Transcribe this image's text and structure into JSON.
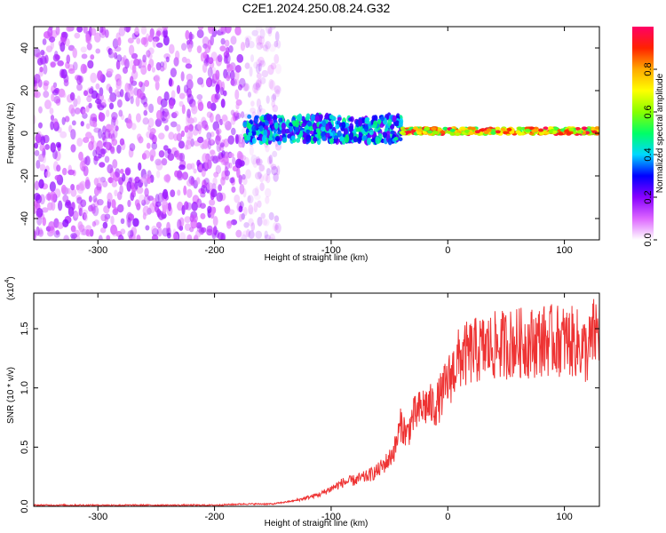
{
  "title": "C2E1.2024.250.08.24.G32",
  "chart_data": [
    {
      "type": "heatmap",
      "xlabel": "Height of straight line (km)",
      "ylabel": "Frequency (Hz)",
      "xlim": [
        -355,
        130
      ],
      "ylim": [
        -50,
        50
      ],
      "xticks": [
        -300,
        -200,
        -100,
        0,
        100
      ],
      "yticks": [
        -40,
        -20,
        0,
        20,
        40
      ],
      "colorbar": {
        "label": "Normalized spectral amplitude",
        "range": [
          0.0,
          1.0
        ],
        "ticks": [
          "0.0",
          "0.2",
          "0.4",
          "0.6",
          "0.8"
        ],
        "colors": [
          "#ffffff",
          "#dd66ff",
          "#8800ff",
          "#0000ff",
          "#00d8ff",
          "#00ff66",
          "#88ff00",
          "#ffff00",
          "#ffaa00",
          "#ff2200",
          "#ff0066"
        ]
      },
      "regions": [
        {
          "x": [
            -355,
            -145
          ],
          "amplitude": [
            0.05,
            0.2
          ],
          "frequency_spread": [
            -50,
            50
          ]
        },
        {
          "x": [
            -175,
            -40
          ],
          "amplitude": [
            0.2,
            0.5
          ],
          "frequency_center": 2,
          "frequency_width": 12
        },
        {
          "x": [
            -40,
            130
          ],
          "amplitude": [
            0.5,
            1.0
          ],
          "frequency_center": 1,
          "frequency_width": 3
        }
      ]
    },
    {
      "type": "line",
      "xlabel": "Height of straight line (km)",
      "ylabel": "SNR (10 * v/v)",
      "y_multiplier": "(x10",
      "y_multiplier_exp": "4",
      "xlim": [
        -355,
        130
      ],
      "ylim": [
        0,
        1.8
      ],
      "xticks": [
        -300,
        -200,
        -100,
        0,
        100
      ],
      "yticks": [
        "0.0",
        "0.5",
        "1.0",
        "1.5"
      ],
      "series": [
        {
          "color": "#ee3333",
          "x": [
            -355,
            -300,
            -250,
            -200,
            -175,
            -150,
            -130,
            -110,
            -100,
            -90,
            -80,
            -70,
            -60,
            -50,
            -45,
            -40,
            -35,
            -30,
            -20,
            -10,
            0,
            10,
            20,
            30,
            40,
            50,
            60,
            70,
            80,
            90,
            100,
            110,
            120,
            125,
            130
          ],
          "y": [
            0.01,
            0.01,
            0.01,
            0.01,
            0.02,
            0.02,
            0.05,
            0.1,
            0.15,
            0.2,
            0.22,
            0.25,
            0.3,
            0.4,
            0.5,
            0.7,
            0.6,
            0.75,
            0.85,
            0.85,
            1.05,
            1.25,
            1.3,
            1.33,
            1.35,
            1.37,
            1.38,
            1.38,
            1.4,
            1.4,
            1.4,
            1.38,
            1.3,
            1.45,
            1.5
          ]
        }
      ]
    }
  ]
}
